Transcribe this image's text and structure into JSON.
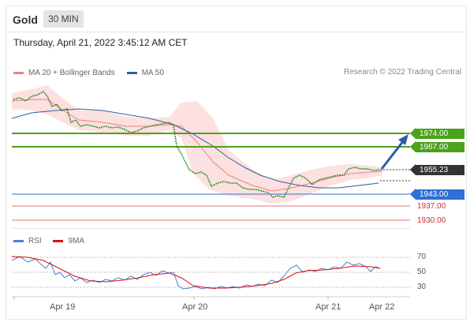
{
  "header": {
    "title": "Gold",
    "interval": "30 MIN"
  },
  "datetime": "Thursday, April 21, 2022 3:45:12 AM CET",
  "legend": {
    "items": [
      {
        "label": "MA 20 + Bollinger Bands",
        "color": "#f08080"
      },
      {
        "label": "MA 50",
        "color": "#2f5f9e"
      }
    ],
    "credit": "Research © 2022 Trading Central"
  },
  "levels": {
    "resistance_1": "1974.00",
    "resistance_2": "1967.00",
    "current": "1955.23",
    "support_1": "1943.00",
    "support_2": "1937.00",
    "support_3": "1930.00"
  },
  "rsi_legend": {
    "items": [
      {
        "label": "RSI",
        "color": "#4a7fd4"
      },
      {
        "label": "9MA",
        "color": "#e01010"
      }
    ]
  },
  "rsi_ticks": [
    "70",
    "50",
    "30"
  ],
  "xaxis": [
    "Apr 19",
    "Apr 20",
    "Apr 21",
    "Apr 22"
  ],
  "colors": {
    "resistance": "#4ca21c",
    "support_main": "#2e6fd8",
    "support_minor": "#e57373",
    "candle": "#2a8a2a",
    "bollinger": "#fbd4d4",
    "arrow": "#2b5da8"
  }
}
